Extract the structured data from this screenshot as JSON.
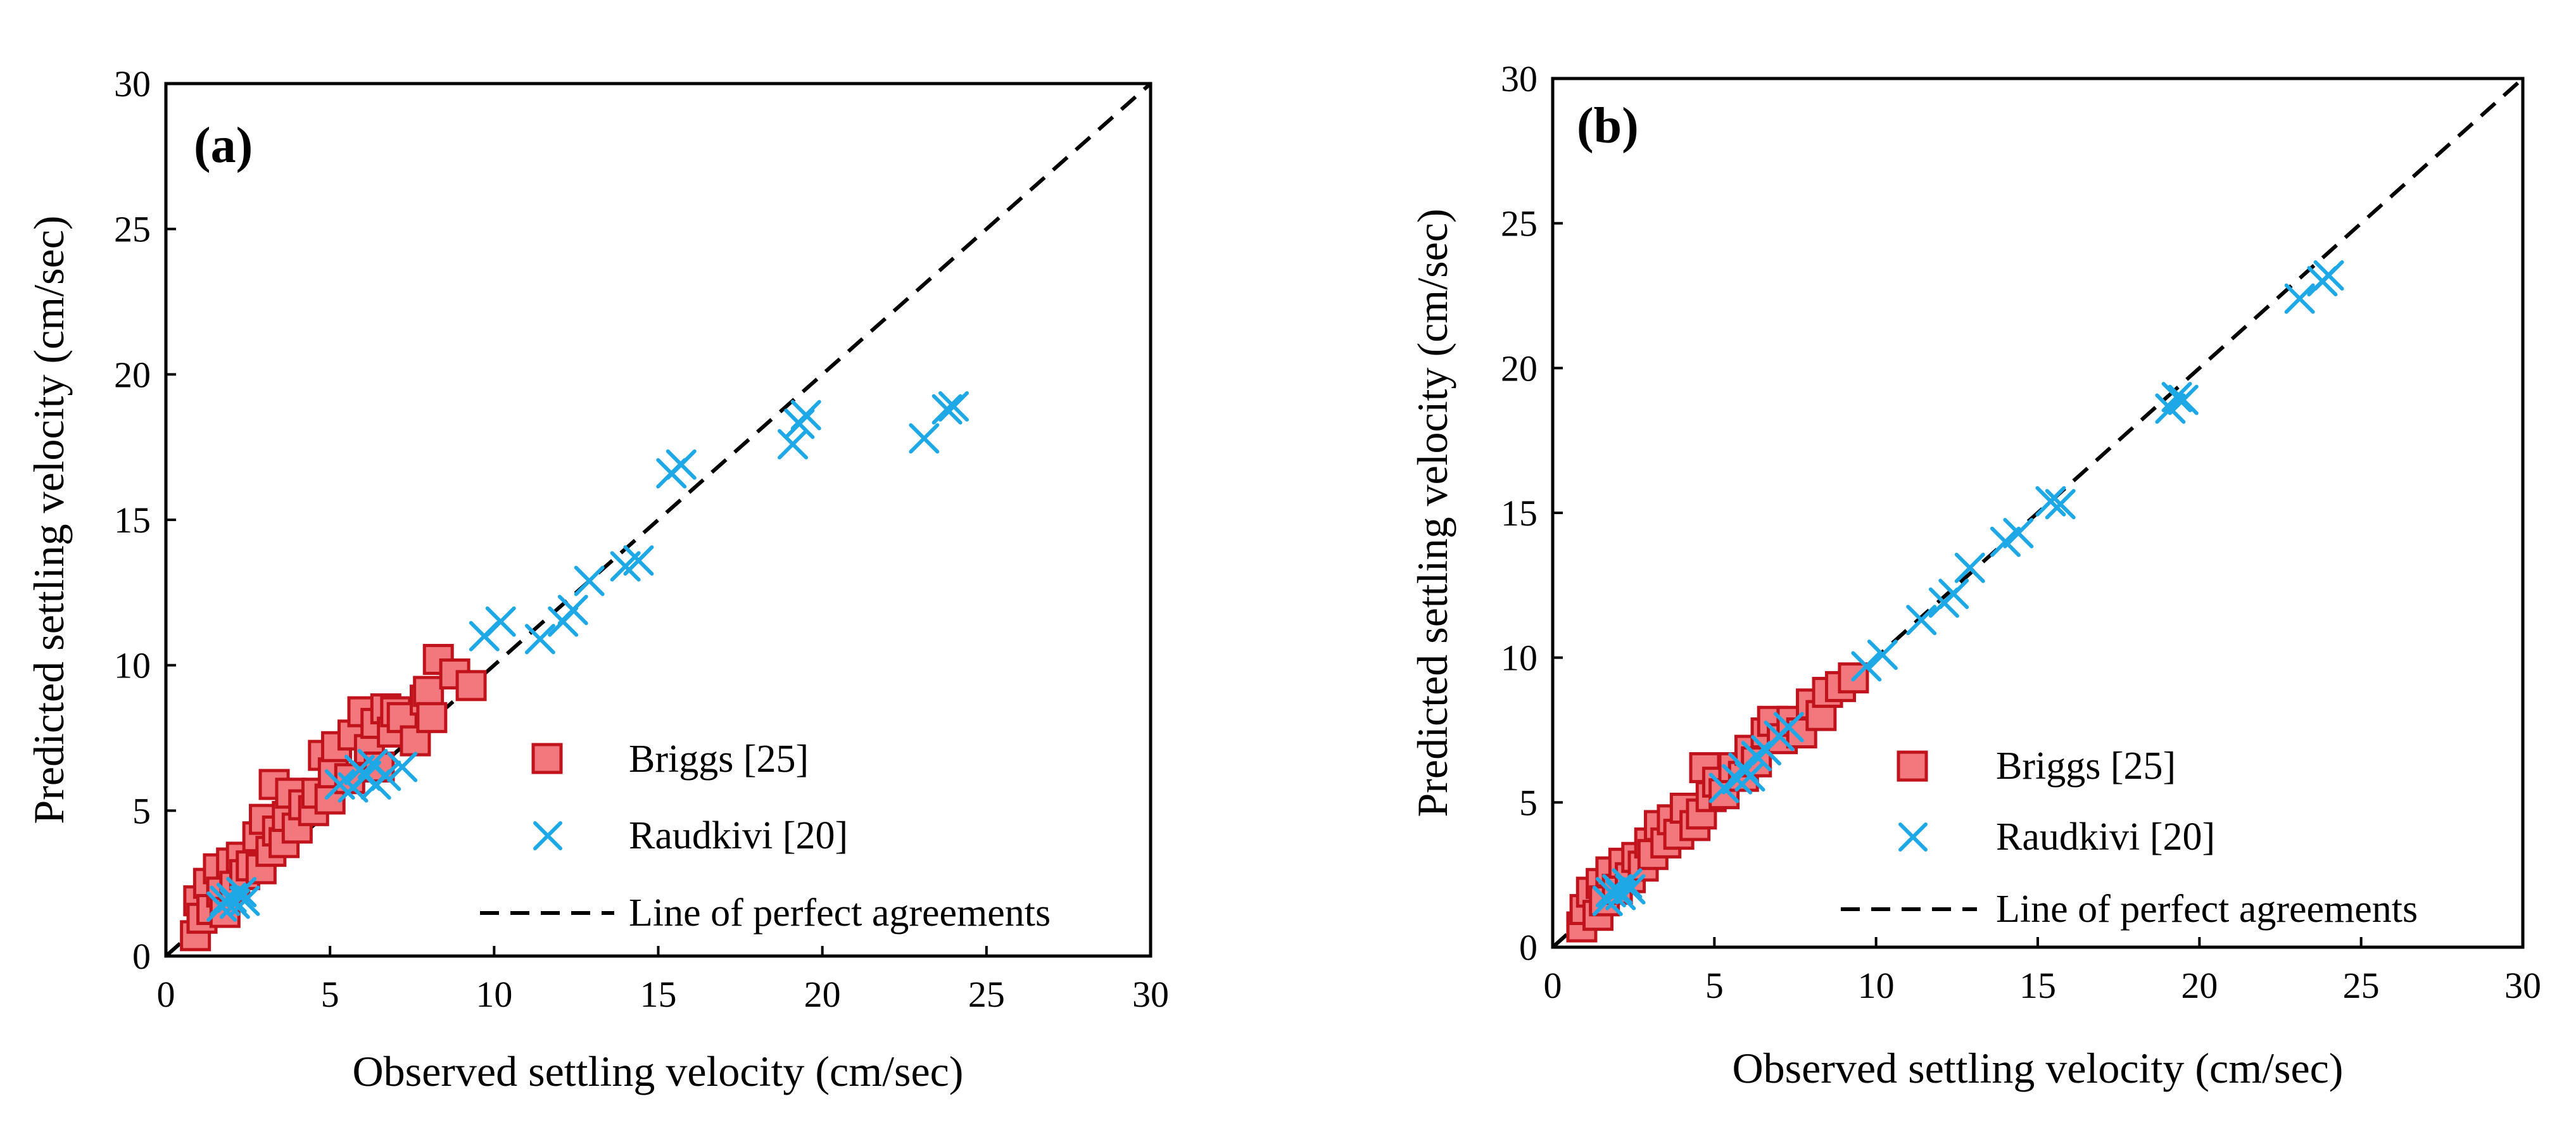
{
  "colors": {
    "briggs_fill": "#f2787e",
    "briggs_stroke": "#c0131c",
    "raudkivi": "#1fa8e6",
    "perfect_line": "#000000"
  },
  "chart_data": [
    {
      "type": "scatter",
      "panel_label": "(a)",
      "xlabel": "Observed settling velocity (cm/sec)",
      "ylabel": "Predicted settling velocity (cm/sec)",
      "xlim": [
        0,
        30
      ],
      "ylim": [
        0,
        30
      ],
      "xticks": [
        "0",
        "5",
        "10",
        "15",
        "20",
        "25",
        "30"
      ],
      "yticks": [
        "0",
        "5",
        "10",
        "15",
        "20",
        "25",
        "30"
      ],
      "grid": false,
      "legend_position": "bottom-right",
      "series": [
        {
          "name": "Briggs [25]",
          "marker": "square",
          "points": [
            [
              0.9,
              0.7
            ],
            [
              1.0,
              1.9
            ],
            [
              1.1,
              1.3
            ],
            [
              1.3,
              2.5
            ],
            [
              1.4,
              1.6
            ],
            [
              1.6,
              3.0
            ],
            [
              1.7,
              2.2
            ],
            [
              1.8,
              1.5
            ],
            [
              2.0,
              3.2
            ],
            [
              2.1,
              2.4
            ],
            [
              2.3,
              3.4
            ],
            [
              2.4,
              2.8
            ],
            [
              2.6,
              3.1
            ],
            [
              2.8,
              4.1
            ],
            [
              2.9,
              3.0
            ],
            [
              3.0,
              4.7
            ],
            [
              3.2,
              3.6
            ],
            [
              3.3,
              5.9
            ],
            [
              3.4,
              4.3
            ],
            [
              3.6,
              3.9
            ],
            [
              3.7,
              4.8
            ],
            [
              3.8,
              5.6
            ],
            [
              4.0,
              4.4
            ],
            [
              4.2,
              5.2
            ],
            [
              4.5,
              5.0
            ],
            [
              4.6,
              5.6
            ],
            [
              4.8,
              6.9
            ],
            [
              5.0,
              5.4
            ],
            [
              5.1,
              6.3
            ],
            [
              5.2,
              7.2
            ],
            [
              5.6,
              6.1
            ],
            [
              5.7,
              7.6
            ],
            [
              6.0,
              8.4
            ],
            [
              6.2,
              7.1
            ],
            [
              6.4,
              8.0
            ],
            [
              6.5,
              6.5
            ],
            [
              6.7,
              8.5
            ],
            [
              6.9,
              7.7
            ],
            [
              7.0,
              8.4
            ],
            [
              7.2,
              8.2
            ],
            [
              7.6,
              7.4
            ],
            [
              7.9,
              8.8
            ],
            [
              8.0,
              9.1
            ],
            [
              8.1,
              8.2
            ],
            [
              8.3,
              10.2
            ],
            [
              8.8,
              9.7
            ],
            [
              9.3,
              9.3
            ]
          ]
        },
        {
          "name": "Raudkivi [20]",
          "marker": "x",
          "points": [
            [
              1.7,
              1.7
            ],
            [
              1.8,
              1.9
            ],
            [
              2.0,
              2.0
            ],
            [
              2.1,
              1.8
            ],
            [
              2.3,
              2.2
            ],
            [
              2.4,
              1.9
            ],
            [
              5.3,
              5.9
            ],
            [
              5.7,
              5.8
            ],
            [
              5.9,
              6.4
            ],
            [
              6.1,
              6.2
            ],
            [
              6.3,
              6.6
            ],
            [
              6.4,
              5.9
            ],
            [
              6.7,
              6.2
            ],
            [
              7.2,
              6.5
            ],
            [
              9.7,
              11.0
            ],
            [
              10.2,
              11.5
            ],
            [
              11.4,
              10.9
            ],
            [
              12.1,
              11.5
            ],
            [
              12.4,
              11.9
            ],
            [
              12.9,
              12.9
            ],
            [
              14.0,
              13.4
            ],
            [
              14.4,
              13.6
            ],
            [
              15.4,
              16.6
            ],
            [
              15.7,
              16.9
            ],
            [
              19.1,
              17.6
            ],
            [
              19.3,
              18.3
            ],
            [
              19.5,
              18.6
            ],
            [
              23.1,
              17.8
            ],
            [
              23.8,
              18.8
            ],
            [
              24.0,
              18.9
            ]
          ]
        },
        {
          "name": "Line of perfect agreements",
          "marker": "dashed-line",
          "points": [
            [
              0,
              0
            ],
            [
              30,
              30
            ]
          ]
        }
      ]
    },
    {
      "type": "scatter",
      "panel_label": "(b)",
      "xlabel": "Observed settling velocity (cm/sec)",
      "ylabel": "Predicted settling velocity (cm/sec)",
      "xlim": [
        0,
        30
      ],
      "ylim": [
        0,
        30
      ],
      "xticks": [
        "0",
        "5",
        "10",
        "15",
        "20",
        "25",
        "30"
      ],
      "yticks": [
        "0",
        "5",
        "10",
        "15",
        "20",
        "25",
        "30"
      ],
      "grid": false,
      "legend_position": "bottom-right",
      "series": [
        {
          "name": "Briggs [25]",
          "marker": "square",
          "points": [
            [
              0.9,
              0.7
            ],
            [
              1.0,
              1.3
            ],
            [
              1.2,
              1.9
            ],
            [
              1.4,
              1.1
            ],
            [
              1.5,
              2.2
            ],
            [
              1.6,
              1.6
            ],
            [
              1.8,
              2.6
            ],
            [
              2.0,
              2.0
            ],
            [
              2.2,
              2.9
            ],
            [
              2.4,
              2.4
            ],
            [
              2.6,
              3.1
            ],
            [
              2.8,
              2.8
            ],
            [
              3.0,
              3.6
            ],
            [
              3.1,
              3.2
            ],
            [
              3.3,
              4.2
            ],
            [
              3.5,
              3.6
            ],
            [
              3.7,
              4.4
            ],
            [
              3.9,
              3.9
            ],
            [
              4.1,
              4.8
            ],
            [
              4.4,
              4.2
            ],
            [
              4.6,
              4.6
            ],
            [
              4.7,
              6.2
            ],
            [
              4.9,
              5.2
            ],
            [
              5.1,
              5.7
            ],
            [
              5.3,
              5.3
            ],
            [
              5.6,
              6.2
            ],
            [
              5.9,
              5.9
            ],
            [
              6.1,
              6.8
            ],
            [
              6.3,
              6.4
            ],
            [
              6.6,
              7.4
            ],
            [
              6.8,
              7.8
            ],
            [
              7.1,
              7.2
            ],
            [
              7.4,
              7.8
            ],
            [
              7.7,
              7.4
            ],
            [
              8.0,
              8.4
            ],
            [
              8.3,
              8.0
            ],
            [
              8.5,
              8.8
            ],
            [
              8.9,
              9.0
            ],
            [
              9.3,
              9.3
            ]
          ]
        },
        {
          "name": "Raudkivi [20]",
          "marker": "x",
          "points": [
            [
              1.7,
              1.6
            ],
            [
              1.8,
              1.9
            ],
            [
              2.0,
              2.0
            ],
            [
              2.1,
              1.8
            ],
            [
              2.3,
              2.2
            ],
            [
              2.4,
              2.0
            ],
            [
              5.3,
              5.5
            ],
            [
              5.7,
              5.8
            ],
            [
              5.9,
              6.2
            ],
            [
              6.1,
              5.9
            ],
            [
              6.3,
              6.6
            ],
            [
              6.6,
              6.8
            ],
            [
              7.0,
              7.3
            ],
            [
              7.3,
              7.6
            ],
            [
              9.7,
              9.7
            ],
            [
              10.2,
              10.1
            ],
            [
              11.4,
              11.3
            ],
            [
              12.1,
              11.9
            ],
            [
              12.4,
              12.2
            ],
            [
              12.9,
              13.1
            ],
            [
              14.0,
              14.0
            ],
            [
              14.4,
              14.3
            ],
            [
              15.4,
              15.4
            ],
            [
              15.7,
              15.3
            ],
            [
              19.1,
              18.6
            ],
            [
              19.3,
              19.0
            ],
            [
              19.5,
              18.9
            ],
            [
              23.1,
              22.4
            ],
            [
              23.8,
              23.0
            ],
            [
              24.0,
              23.2
            ]
          ]
        },
        {
          "name": "Line of perfect agreements",
          "marker": "dashed-line",
          "points": [
            [
              0,
              0
            ],
            [
              30,
              30
            ]
          ]
        }
      ]
    }
  ]
}
